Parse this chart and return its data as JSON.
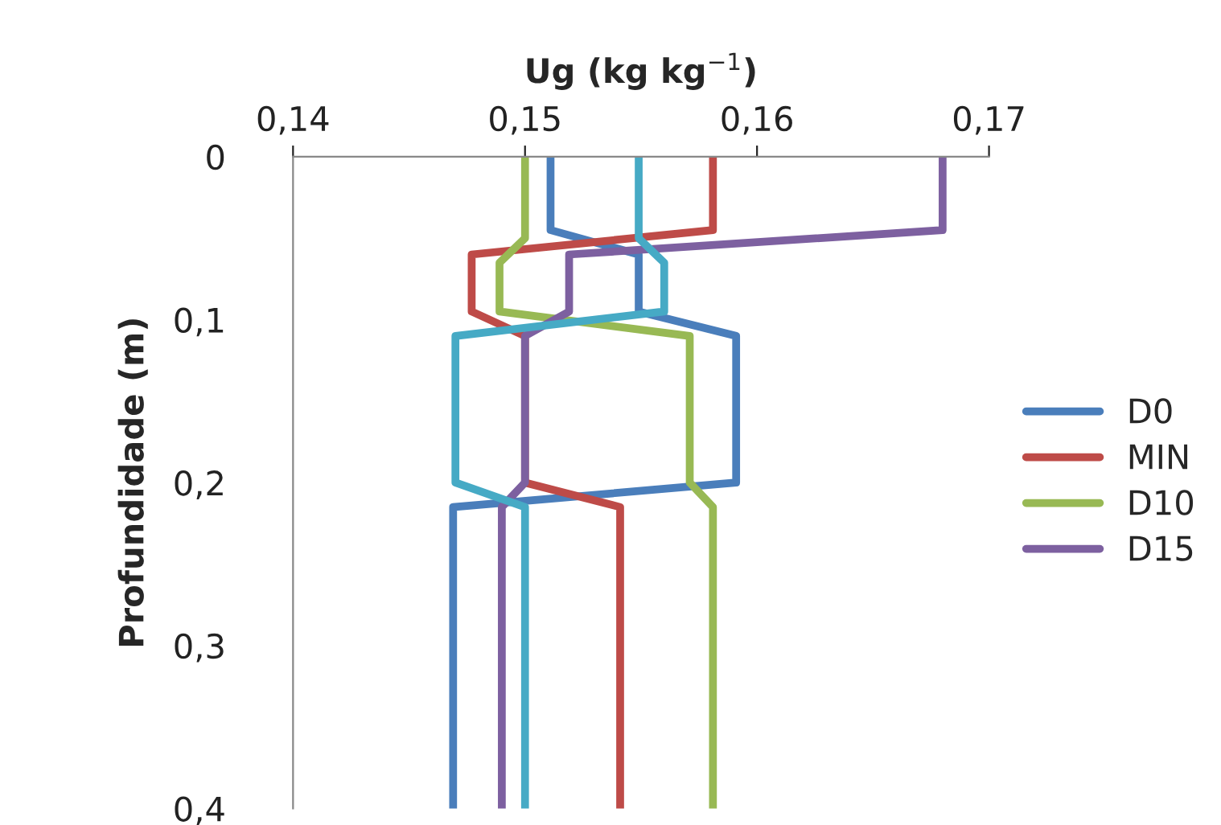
{
  "chart_data": {
    "type": "line",
    "xlabel": "Ug (kg kg$^{−1}$)",
    "ylabel": "Profundidade (m)",
    "xlim": [
      0.14,
      0.17
    ],
    "ylim": [
      0.4,
      0
    ],
    "xticks": [
      {
        "value": 0.14,
        "label": "0,14"
      },
      {
        "value": 0.15,
        "label": "0,15"
      },
      {
        "value": 0.16,
        "label": "0,16"
      },
      {
        "value": 0.17,
        "label": "0,17"
      }
    ],
    "yticks": [
      {
        "value": 0,
        "label": "0"
      },
      {
        "value": 0.1,
        "label": "0,1"
      },
      {
        "value": 0.2,
        "label": "0,2"
      },
      {
        "value": 0.3,
        "label": "0,3"
      },
      {
        "value": 0.4,
        "label": "0,4"
      }
    ],
    "legend": "right",
    "grid": false,
    "marker": "none",
    "line_style": "solid",
    "series": [
      {
        "name": "D0",
        "color": "#4a7ebb",
        "x": [
          0.1511,
          0.1511,
          0.1549,
          0.1549,
          0.1591,
          0.1591,
          0.1469,
          0.1469
        ],
        "values": [
          0,
          0.045,
          0.06,
          0.095,
          0.11,
          0.2,
          0.215,
          0.4
        ]
      },
      {
        "name": "MIN",
        "color": "#be4b48",
        "x": [
          0.1581,
          0.1581,
          0.1477,
          0.1477,
          0.15,
          0.15,
          0.1541,
          0.1541
        ],
        "values": [
          0,
          0.045,
          0.06,
          0.095,
          0.11,
          0.2,
          0.215,
          0.4
        ]
      },
      {
        "name": "D10",
        "color": "#98b954",
        "x": [
          0.15,
          0.15,
          0.1489,
          0.1489,
          0.1571,
          0.1571,
          0.1581,
          0.1581
        ],
        "values": [
          0,
          0.05,
          0.065,
          0.095,
          0.11,
          0.2,
          0.215,
          0.4
        ]
      },
      {
        "name": "D15",
        "color": "#7d60a0",
        "x": [
          0.168,
          0.168,
          0.1519,
          0.1519,
          0.15,
          0.15,
          0.149,
          0.149
        ],
        "values": [
          0,
          0.045,
          0.06,
          0.095,
          0.11,
          0.2,
          0.215,
          0.4
        ]
      },
      {
        "color": "#46aac5",
        "x": [
          0.1549,
          0.1549,
          0.156,
          0.156,
          0.147,
          0.147,
          0.15,
          0.15
        ],
        "values": [
          0,
          0.05,
          0.065,
          0.095,
          0.11,
          0.2,
          0.215,
          0.4
        ]
      }
    ]
  }
}
